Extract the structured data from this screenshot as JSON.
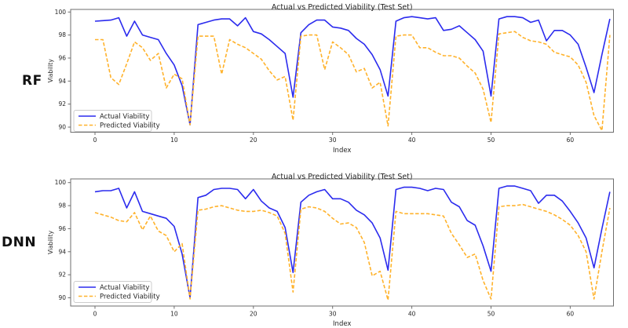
{
  "row_labels": [
    "RF",
    "DNN"
  ],
  "chart_data": [
    {
      "type": "line",
      "model": "RF",
      "title": "Actual vs Predicted Viability (Test Set)",
      "xlabel": "Index",
      "ylabel": "Viability",
      "x_ticks": [
        0,
        10,
        20,
        30,
        40,
        50,
        60
      ],
      "y_ticks": [
        90,
        92,
        94,
        96,
        98,
        100
      ],
      "ylim": [
        89.5,
        100.3
      ],
      "xlim": [
        -3,
        66
      ],
      "grid": false,
      "legend_position": "lower left",
      "legend_entries": [
        "Actual Viability",
        "Predicted Viability"
      ],
      "colors": {
        "actual": "#2b2bee",
        "predicted": "#ffb22b"
      },
      "x": [
        0,
        1,
        2,
        3,
        4,
        5,
        6,
        7,
        8,
        9,
        10,
        11,
        12,
        13,
        14,
        15,
        16,
        17,
        18,
        19,
        20,
        21,
        22,
        23,
        24,
        25,
        26,
        27,
        28,
        29,
        30,
        31,
        32,
        33,
        34,
        35,
        36,
        37,
        38,
        39,
        40,
        41,
        42,
        43,
        44,
        45,
        46,
        47,
        48,
        49,
        50,
        51,
        52,
        53,
        54,
        55,
        56,
        57,
        58,
        59,
        60,
        61,
        62,
        63,
        64,
        65
      ],
      "series": [
        {
          "name": "Actual Viability",
          "color": "#2b2bee",
          "style": "solid",
          "values": [
            99.2,
            99.25,
            99.3,
            99.5,
            97.9,
            99.2,
            98.0,
            97.8,
            97.6,
            96.4,
            95.4,
            93.6,
            90.2,
            98.9,
            99.1,
            99.3,
            99.4,
            99.4,
            98.8,
            99.5,
            98.3,
            98.1,
            97.6,
            97.0,
            96.4,
            92.6,
            98.2,
            98.9,
            99.3,
            99.3,
            98.7,
            98.6,
            98.4,
            97.7,
            97.2,
            96.3,
            95.0,
            92.7,
            99.2,
            99.5,
            99.6,
            99.5,
            99.4,
            99.5,
            98.4,
            98.5,
            98.8,
            98.2,
            97.6,
            96.6,
            92.7,
            99.4,
            99.6,
            99.6,
            99.5,
            99.1,
            99.3,
            97.5,
            98.4,
            98.4,
            98.0,
            97.2,
            95.2,
            93.0,
            96.3,
            99.4
          ]
        },
        {
          "name": "Predicted Viability",
          "color": "#ffb22b",
          "style": "dashed",
          "values": [
            97.6,
            97.6,
            94.3,
            93.7,
            95.5,
            97.4,
            96.9,
            95.8,
            96.4,
            93.4,
            94.6,
            94.2,
            90.2,
            97.9,
            97.9,
            97.9,
            94.6,
            97.6,
            97.2,
            96.9,
            96.4,
            95.9,
            94.9,
            94.1,
            94.4,
            90.6,
            97.9,
            98.0,
            98.0,
            95.0,
            97.4,
            96.9,
            96.3,
            94.8,
            95.1,
            93.4,
            93.9,
            90.1,
            97.9,
            98.0,
            98.0,
            96.9,
            96.9,
            96.5,
            96.2,
            96.2,
            96.0,
            95.3,
            94.7,
            93.3,
            90.4,
            98.1,
            98.2,
            98.3,
            97.8,
            97.5,
            97.4,
            97.2,
            96.5,
            96.3,
            96.1,
            95.4,
            93.9,
            91.0,
            89.7,
            98.0
          ]
        }
      ]
    },
    {
      "type": "line",
      "model": "DNN",
      "title": "Actual vs Predicted Viability (Test Set)",
      "xlabel": "Index",
      "ylabel": "Viability",
      "x_ticks": [
        0,
        10,
        20,
        30,
        40,
        50,
        60
      ],
      "y_ticks": [
        90,
        92,
        94,
        96,
        98,
        100
      ],
      "ylim": [
        89.5,
        100.3
      ],
      "xlim": [
        -3,
        66
      ],
      "grid": false,
      "legend_position": "lower left",
      "legend_entries": [
        "Actual Viability",
        "Predicted Viability"
      ],
      "colors": {
        "actual": "#2b2bee",
        "predicted": "#ffb22b"
      },
      "x": [
        0,
        1,
        2,
        3,
        4,
        5,
        6,
        7,
        8,
        9,
        10,
        11,
        12,
        13,
        14,
        15,
        16,
        17,
        18,
        19,
        20,
        21,
        22,
        23,
        24,
        25,
        26,
        27,
        28,
        29,
        30,
        31,
        32,
        33,
        34,
        35,
        36,
        37,
        38,
        39,
        40,
        41,
        42,
        43,
        44,
        45,
        46,
        47,
        48,
        49,
        50,
        51,
        52,
        53,
        54,
        55,
        56,
        57,
        58,
        59,
        60,
        61,
        62,
        63,
        64,
        65
      ],
      "series": [
        {
          "name": "Actual Viability",
          "color": "#2b2bee",
          "style": "solid",
          "values": [
            99.2,
            99.3,
            99.3,
            99.5,
            97.8,
            99.2,
            97.5,
            97.3,
            97.1,
            96.9,
            96.2,
            93.8,
            90.0,
            98.7,
            98.9,
            99.4,
            99.5,
            99.5,
            99.4,
            98.6,
            99.4,
            98.4,
            97.8,
            97.5,
            96.1,
            92.2,
            98.3,
            98.9,
            99.2,
            99.4,
            98.6,
            98.6,
            98.3,
            97.6,
            97.2,
            96.5,
            95.2,
            92.4,
            99.4,
            99.6,
            99.6,
            99.5,
            99.3,
            99.5,
            99.4,
            98.3,
            97.9,
            96.7,
            96.3,
            94.5,
            92.3,
            99.5,
            99.7,
            99.7,
            99.5,
            99.3,
            98.2,
            98.9,
            98.9,
            98.4,
            97.5,
            96.5,
            95.2,
            92.6,
            96.0,
            99.2
          ]
        },
        {
          "name": "Predicted Viability",
          "color": "#ffb22b",
          "style": "dashed",
          "values": [
            97.4,
            97.2,
            97.0,
            96.7,
            96.6,
            97.4,
            95.9,
            97.1,
            95.8,
            95.4,
            94.0,
            94.7,
            89.9,
            97.6,
            97.7,
            97.9,
            98.0,
            97.8,
            97.6,
            97.5,
            97.5,
            97.6,
            97.4,
            97.1,
            95.6,
            90.5,
            97.7,
            97.9,
            97.8,
            97.5,
            96.9,
            96.4,
            96.5,
            96.1,
            94.8,
            91.9,
            92.3,
            89.8,
            97.5,
            97.3,
            97.3,
            97.3,
            97.3,
            97.2,
            97.1,
            95.6,
            94.6,
            93.5,
            93.8,
            91.5,
            89.9,
            97.9,
            98.0,
            98.0,
            98.1,
            97.9,
            97.7,
            97.5,
            97.2,
            96.8,
            96.3,
            95.4,
            94.0,
            89.9,
            94.0,
            97.8
          ]
        }
      ]
    }
  ]
}
